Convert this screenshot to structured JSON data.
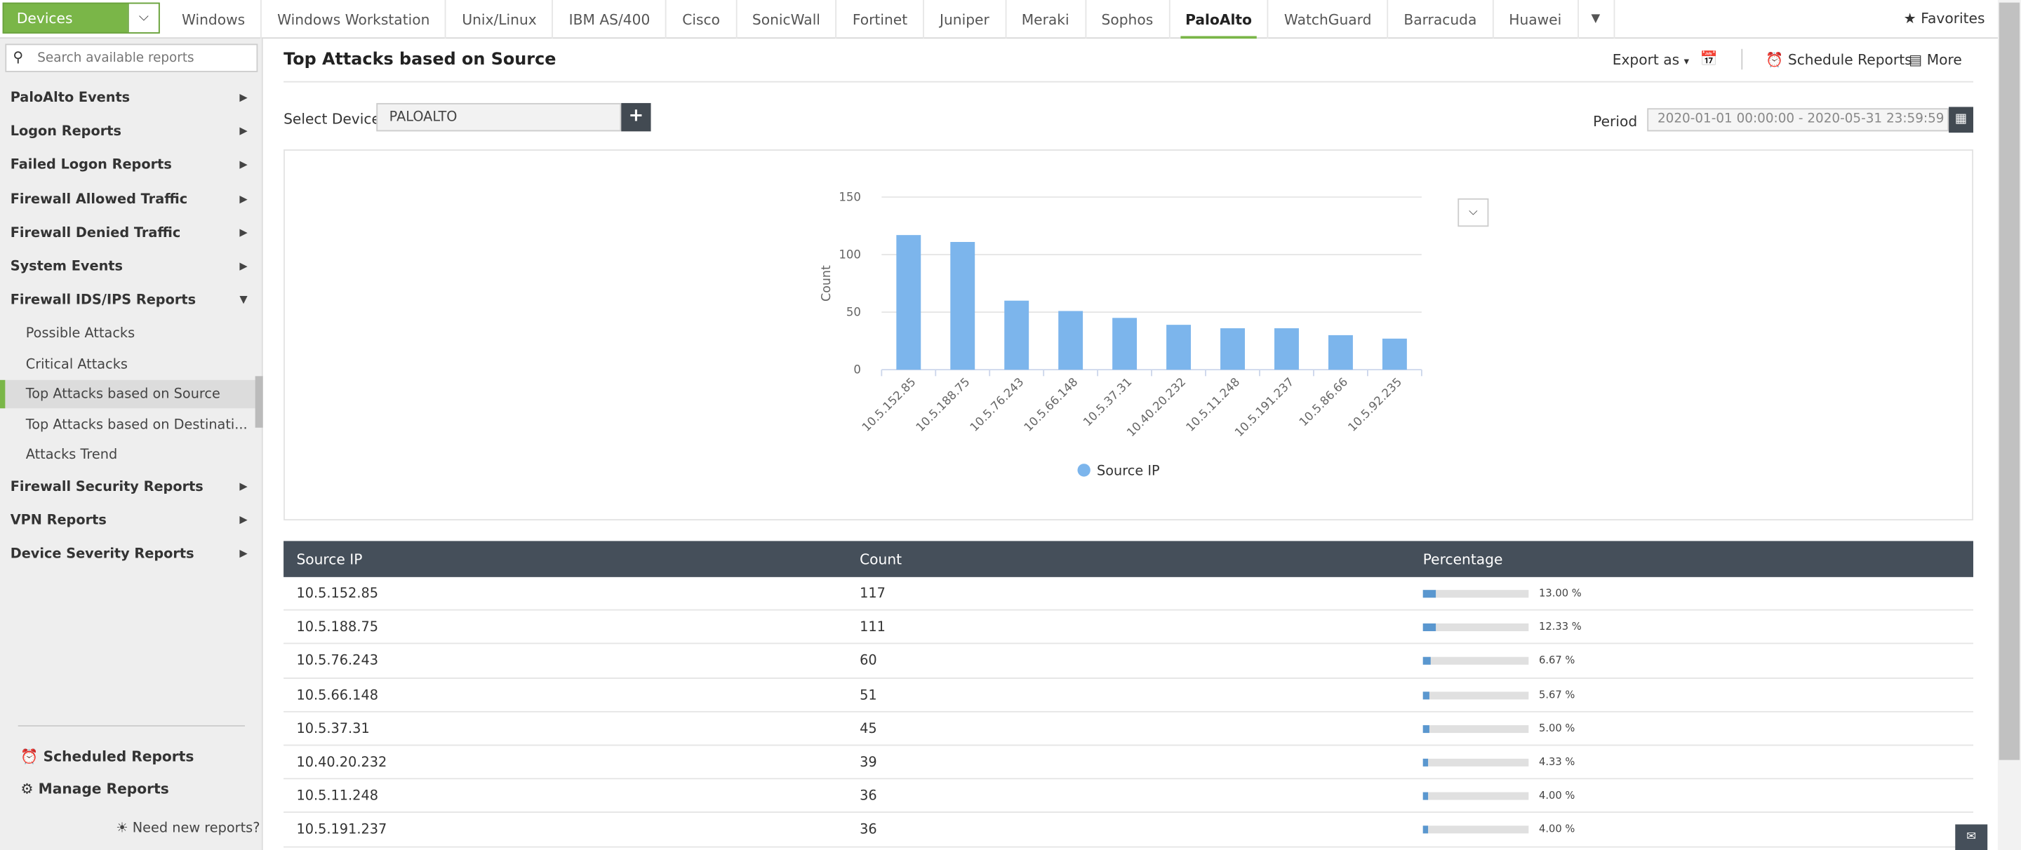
{
  "topnav": {
    "devices_label": "Devices",
    "tabs": [
      "Windows",
      "Windows Workstation",
      "Unix/Linux",
      "IBM AS/400",
      "Cisco",
      "SonicWall",
      "Fortinet",
      "Juniper",
      "Meraki",
      "Sophos",
      "PaloAlto",
      "WatchGuard",
      "Barracuda",
      "Huawei"
    ],
    "active_tab": "PaloAlto",
    "favorites_label": "Favorites",
    "accent": "#7ab648"
  },
  "sidebar": {
    "search_placeholder": "Search available reports",
    "groups": [
      "PaloAlto Events",
      "Logon Reports",
      "Failed Logon Reports",
      "Firewall Allowed Traffic",
      "Firewall Denied Traffic",
      "System Events",
      "Firewall IDS/IPS Reports"
    ],
    "sub_items": [
      "Possible Attacks",
      "Critical Attacks",
      "Top Attacks based on Source",
      "Top Attacks based on Destinati...",
      "Attacks Trend"
    ],
    "active_sub": "Top Attacks based on Source",
    "groups_after": [
      "Firewall Security Reports",
      "VPN Reports",
      "Device Severity Reports"
    ],
    "scheduled_label": "Scheduled Reports",
    "manage_label": "Manage Reports",
    "need_label": "Need new reports?"
  },
  "main": {
    "title": "Top Attacks based on Source",
    "export_label": "Export as",
    "schedule_label": "Schedule Reports",
    "more_label": "More",
    "select_device_label": "Select Device",
    "device_value": "PALOALTO",
    "plus_label": "+",
    "period_label": "Period",
    "period_value": "2020-01-01 00:00:00 - 2020-05-31 23:59:59"
  },
  "chart_data": {
    "type": "bar",
    "categories": [
      "10.5.152.85",
      "10.5.188.75",
      "10.5.76.243",
      "10.5.66.148",
      "10.5.37.31",
      "10.40.20.232",
      "10.5.11.248",
      "10.5.191.237",
      "10.5.86.66",
      "10.5.92.235"
    ],
    "series": [
      {
        "name": "Source IP",
        "values": [
          117,
          111,
          60,
          51,
          45,
          39,
          36,
          36,
          30,
          27
        ]
      }
    ],
    "ylabel": "Count",
    "xlabel": "",
    "ylim": [
      0,
      150
    ],
    "yticks": [
      0,
      50,
      100,
      150
    ],
    "grid": true,
    "legend": "bottom",
    "color": "#7cb5ec"
  },
  "table": {
    "headers": [
      "Source IP",
      "Count",
      "Percentage"
    ],
    "rows": [
      {
        "ip": "10.5.152.85",
        "count": "117",
        "pct": "13.00 %",
        "frac": 0.13
      },
      {
        "ip": "10.5.188.75",
        "count": "111",
        "pct": "12.33 %",
        "frac": 0.1233
      },
      {
        "ip": "10.5.76.243",
        "count": "60",
        "pct": "6.67 %",
        "frac": 0.0667
      },
      {
        "ip": "10.5.66.148",
        "count": "51",
        "pct": "5.67 %",
        "frac": 0.0567
      },
      {
        "ip": "10.5.37.31",
        "count": "45",
        "pct": "5.00 %",
        "frac": 0.05
      },
      {
        "ip": "10.40.20.232",
        "count": "39",
        "pct": "4.33 %",
        "frac": 0.0433
      },
      {
        "ip": "10.5.11.248",
        "count": "36",
        "pct": "4.00 %",
        "frac": 0.04
      },
      {
        "ip": "10.5.191.237",
        "count": "36",
        "pct": "4.00 %",
        "frac": 0.04
      }
    ]
  }
}
